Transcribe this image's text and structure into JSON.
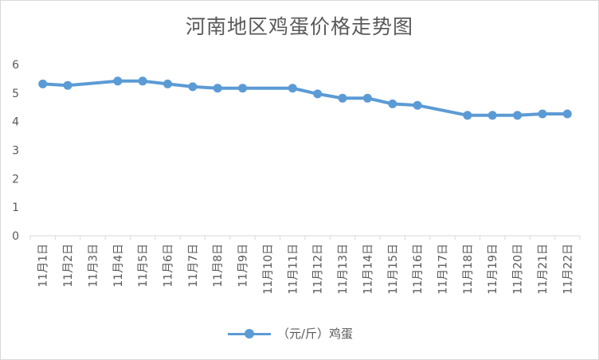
{
  "chart_data": {
    "type": "line",
    "title": "河南地区鸡蛋价格走势图",
    "categories": [
      "11月1日",
      "11月2日",
      "11月3日",
      "11月4日",
      "11月5日",
      "11月6日",
      "11月7日",
      "11月8日",
      "11月9日",
      "11月10日",
      "11月11日",
      "11月12日",
      "11月13日",
      "11月14日",
      "11月15日",
      "11月16日",
      "11月17日",
      "11月18日",
      "11月19日",
      "11月20日",
      "11月21日",
      "11月22日"
    ],
    "series": [
      {
        "name": "（元/斤）鸡蛋",
        "color": "#5b9bd5",
        "values": [
          5.32,
          5.27,
          null,
          5.42,
          5.42,
          5.32,
          5.22,
          5.17,
          5.17,
          null,
          5.17,
          4.97,
          4.82,
          4.82,
          4.62,
          4.57,
          null,
          4.22,
          4.22,
          4.22,
          4.27,
          4.27
        ]
      }
    ],
    "yticks": [
      "0",
      "1",
      "2",
      "3",
      "4",
      "5",
      "6"
    ],
    "ylim": [
      0,
      6
    ],
    "grid": false,
    "legend_position": "bottom"
  }
}
